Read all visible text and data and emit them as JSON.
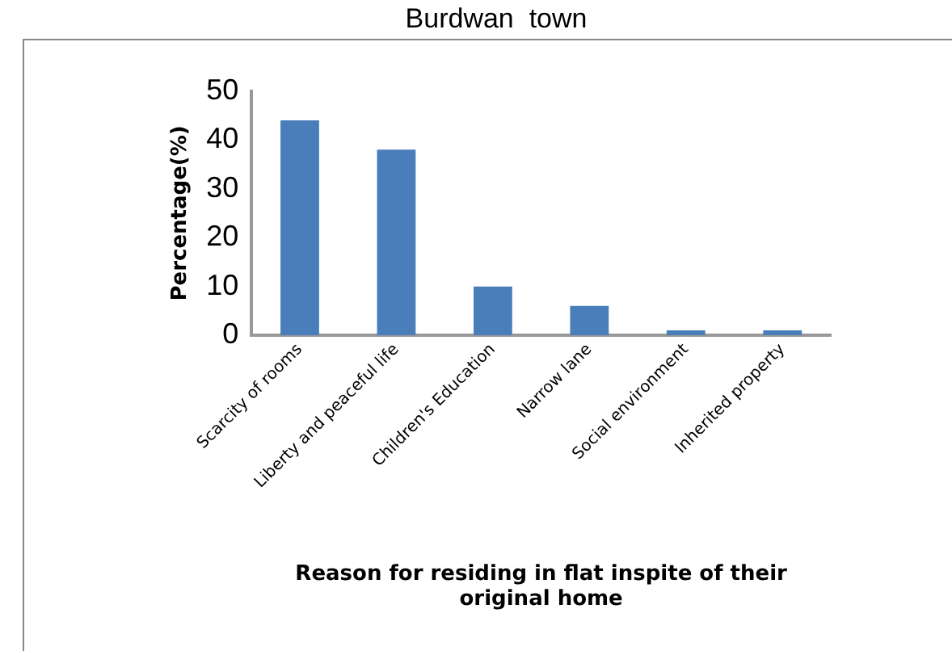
{
  "chart_data": {
    "type": "bar",
    "title": "Burdwan  town",
    "xlabel": "Reason for residing in flat inspite of their original home",
    "ylabel": "Percentage(%)",
    "categories": [
      "Scarcity of rooms",
      "Liberty and peaceful life",
      "Children's Education",
      "Narrow lane",
      "Social environment",
      "Inherited property"
    ],
    "values": [
      44,
      38,
      10,
      6,
      1,
      1
    ],
    "color": "#4a7ebb",
    "ylim": [
      0,
      50
    ],
    "yticks": [
      0,
      10,
      20,
      30,
      40,
      50
    ],
    "grid": false,
    "legend": false
  }
}
